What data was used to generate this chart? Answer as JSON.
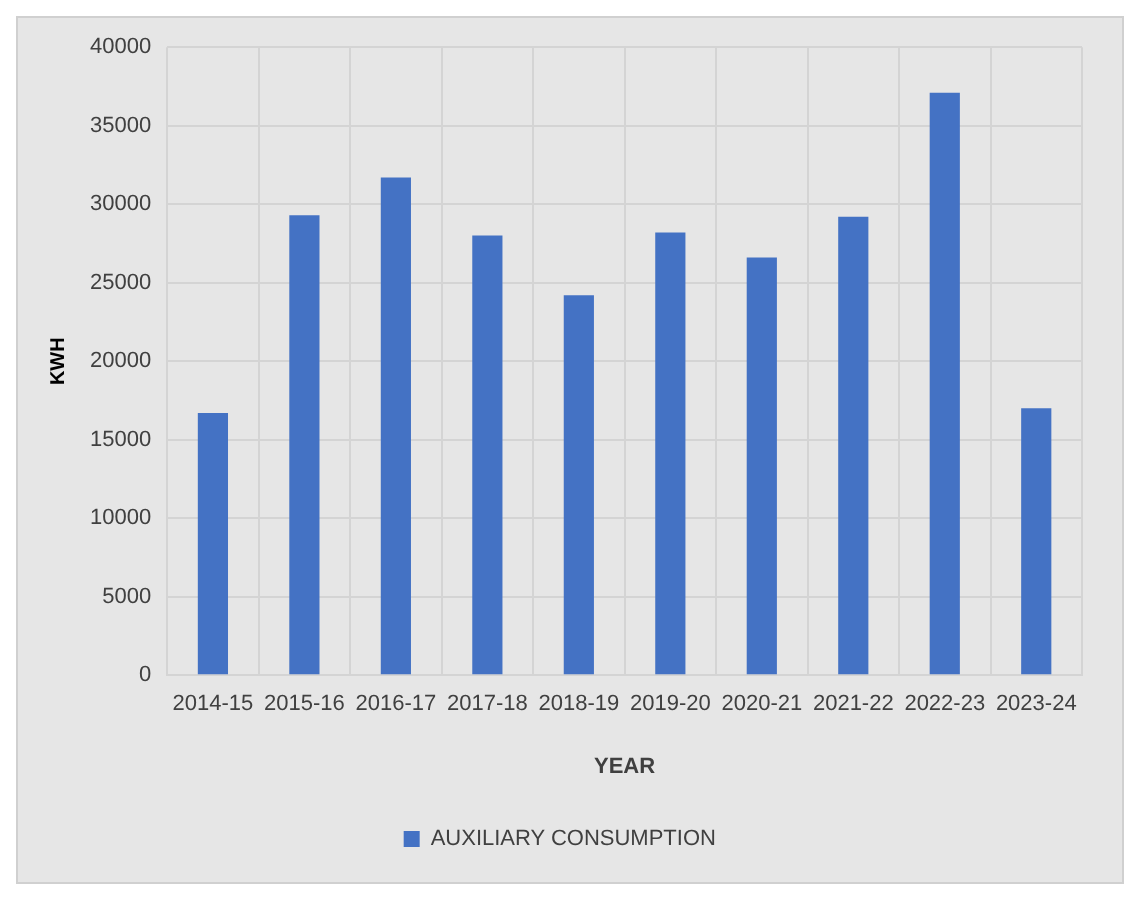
{
  "chart_data": {
    "type": "bar",
    "xlabel": "YEAR",
    "ylabel": "KWH",
    "categories": [
      "2014-15",
      "2015-16",
      "2016-17",
      "2017-18",
      "2018-19",
      "2019-20",
      "2020-21",
      "2021-22",
      "2022-23",
      "2023-24"
    ],
    "series": [
      {
        "name": "AUXILIARY CONSUMPTION",
        "color": "#4472c4",
        "values": [
          16700,
          29300,
          31700,
          28000,
          24200,
          28200,
          26600,
          29200,
          37100,
          17000
        ]
      }
    ],
    "ylim": [
      0,
      40000
    ],
    "yticks": [
      0,
      5000,
      10000,
      15000,
      20000,
      25000,
      30000,
      35000,
      40000
    ],
    "grid": true,
    "legend": "bottom"
  }
}
